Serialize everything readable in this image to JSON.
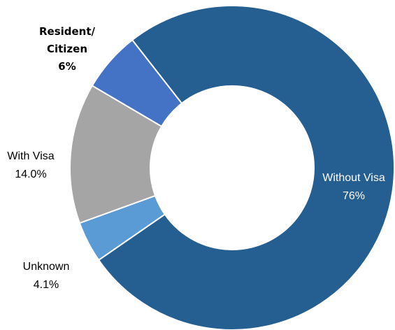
{
  "chart_data": {
    "type": "pie",
    "donut": true,
    "slices": [
      {
        "label": "Without Visa",
        "value_text": "76%",
        "value": 76,
        "color": "#255e91"
      },
      {
        "label": "Unknown",
        "value_text": "4.1%",
        "value": 4.1,
        "color": "#5b9bd5"
      },
      {
        "label": "With Visa",
        "value_text": "14.0%",
        "value": 14.0,
        "color": "#a5a5a5"
      },
      {
        "label": "Resident/ Citizen",
        "label_lines": [
          "Resident/",
          "Citizen"
        ],
        "value_text": "6%",
        "value": 6,
        "color": "#4472c4"
      }
    ],
    "legend": "none",
    "label_colors": {
      "inside": "#ffffff",
      "outside": "#000000"
    }
  }
}
